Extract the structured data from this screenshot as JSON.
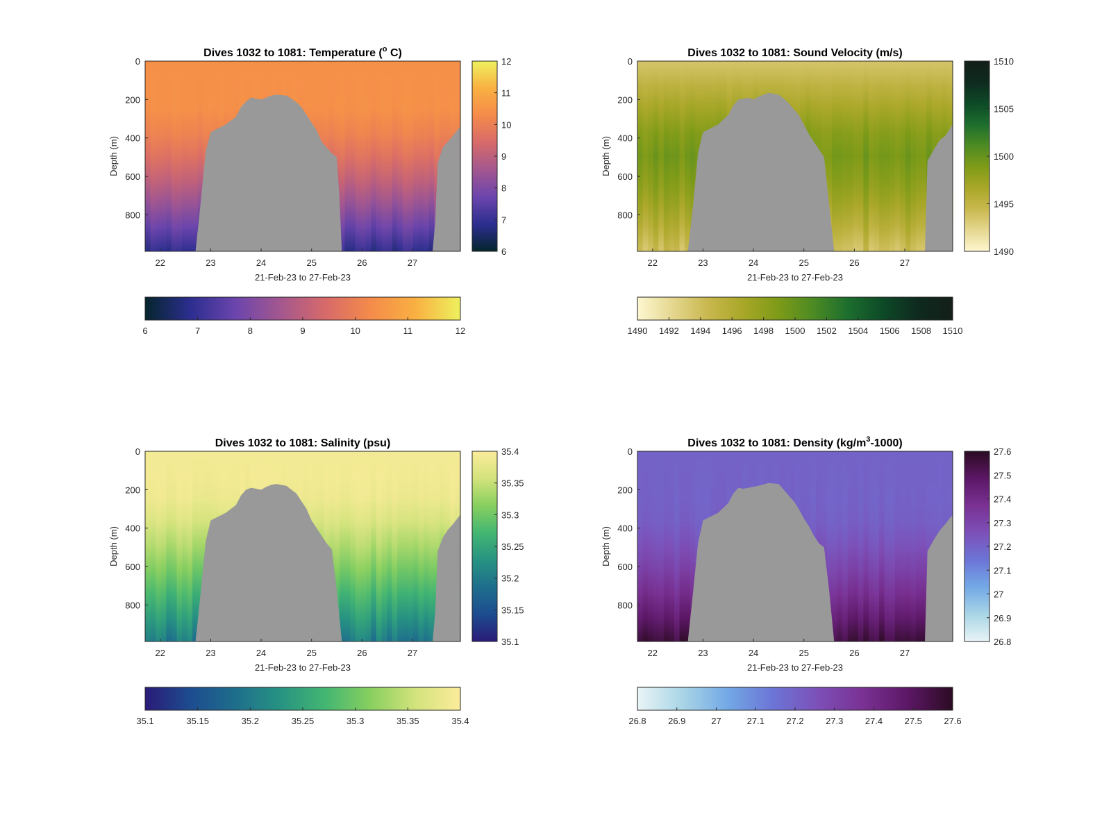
{
  "chart_data": [
    {
      "type": "heatmap",
      "title_main": "Dives 1032 to 1081: Temperature (",
      "title_sup": "o",
      "title_tail": " C)",
      "xlabel": "21-Feb-23 to 27-Feb-23",
      "ylabel": "Depth (m)",
      "xlim": [
        21.7,
        27.95
      ],
      "ylim": [
        0,
        990
      ],
      "xticks": [
        "22",
        "23",
        "24",
        "25",
        "26",
        "27"
      ],
      "xtick_values": [
        22,
        23,
        24,
        25,
        26,
        27
      ],
      "yticks": [
        "0",
        "200",
        "400",
        "600",
        "800"
      ],
      "ytick_values": [
        0,
        200,
        400,
        600,
        800
      ],
      "colormap": [
        "#05252c",
        "#2c2e8f",
        "#6b45ad",
        "#a3578f",
        "#d76a6a",
        "#f48b4a",
        "#f9b042",
        "#eef15d"
      ],
      "clim": [
        6,
        12
      ],
      "vcolorbar_ticks": [
        "6",
        "7",
        "8",
        "9",
        "10",
        "11",
        "12"
      ],
      "hcolorbar_ticks": [
        "6",
        "7",
        "8",
        "9",
        "10",
        "11",
        "12"
      ],
      "surface_value": 10.4,
      "deep_value": 6.9,
      "profile": "temperature",
      "seabed": [
        [
          21.7,
          990
        ],
        [
          22.7,
          990
        ],
        [
          22.8,
          740
        ],
        [
          22.9,
          470
        ],
        [
          23.0,
          370
        ],
        [
          23.3,
          330
        ],
        [
          23.5,
          290
        ],
        [
          23.6,
          240
        ],
        [
          23.7,
          210
        ],
        [
          23.8,
          190
        ],
        [
          23.9,
          195
        ],
        [
          24.0,
          200
        ],
        [
          24.1,
          190
        ],
        [
          24.2,
          180
        ],
        [
          24.3,
          175
        ],
        [
          24.5,
          180
        ],
        [
          24.6,
          195
        ],
        [
          24.7,
          215
        ],
        [
          24.8,
          240
        ],
        [
          24.9,
          280
        ],
        [
          25.0,
          320
        ],
        [
          25.1,
          360
        ],
        [
          25.2,
          420
        ],
        [
          25.3,
          450
        ],
        [
          25.4,
          480
        ],
        [
          25.5,
          500
        ],
        [
          25.55,
          700
        ],
        [
          25.6,
          990
        ],
        [
          27.4,
          990
        ],
        [
          27.45,
          840
        ],
        [
          27.5,
          530
        ],
        [
          27.6,
          450
        ],
        [
          27.7,
          420
        ],
        [
          27.8,
          390
        ],
        [
          27.95,
          340
        ]
      ]
    },
    {
      "type": "heatmap",
      "title_main": "Dives 1032 to 1081: Sound Velocity (m/s)",
      "title_sup": "",
      "title_tail": "",
      "xlabel": "21-Feb-23 to 27-Feb-23",
      "ylabel": "Depth (m)",
      "xlim": [
        21.7,
        27.95
      ],
      "ylim": [
        0,
        990
      ],
      "xticks": [
        "22",
        "23",
        "24",
        "25",
        "26",
        "27"
      ],
      "xtick_values": [
        22,
        23,
        24,
        25,
        26,
        27
      ],
      "yticks": [
        "0",
        "200",
        "400",
        "600",
        "800"
      ],
      "ytick_values": [
        0,
        200,
        400,
        600,
        800
      ],
      "colormap": [
        "#fdf7d0",
        "#e5d790",
        "#c9b84f",
        "#a9a728",
        "#7f9b18",
        "#4d8b23",
        "#1d6e2e",
        "#0d4a27",
        "#0e2a1f",
        "#141f18"
      ],
      "clim": [
        1490,
        1510
      ],
      "vcolorbar_ticks": [
        "1490",
        "1495",
        "1500",
        "1505",
        "1510"
      ],
      "hcolorbar_ticks": [
        "1490",
        "1492",
        "1494",
        "1496",
        "1498",
        "1500",
        "1502",
        "1504",
        "1506",
        "1508",
        "1510"
      ],
      "surface_value": 1493.5,
      "deep_value": 1494.0,
      "profile": "sound",
      "seabed": [
        [
          21.7,
          990
        ],
        [
          22.7,
          990
        ],
        [
          22.8,
          760
        ],
        [
          22.9,
          480
        ],
        [
          23.0,
          370
        ],
        [
          23.3,
          330
        ],
        [
          23.5,
          280
        ],
        [
          23.6,
          230
        ],
        [
          23.7,
          200
        ],
        [
          23.9,
          190
        ],
        [
          24.0,
          200
        ],
        [
          24.1,
          185
        ],
        [
          24.2,
          175
        ],
        [
          24.3,
          165
        ],
        [
          24.5,
          175
        ],
        [
          24.6,
          195
        ],
        [
          24.7,
          220
        ],
        [
          24.8,
          250
        ],
        [
          24.9,
          280
        ],
        [
          25.0,
          330
        ],
        [
          25.1,
          380
        ],
        [
          25.2,
          420
        ],
        [
          25.3,
          460
        ],
        [
          25.4,
          500
        ],
        [
          25.5,
          740
        ],
        [
          25.6,
          990
        ],
        [
          27.4,
          990
        ],
        [
          27.45,
          520
        ],
        [
          27.6,
          450
        ],
        [
          27.7,
          410
        ],
        [
          27.8,
          390
        ],
        [
          27.95,
          330
        ]
      ]
    },
    {
      "type": "heatmap",
      "title_main": "Dives 1032 to 1081: Salinity (psu)",
      "title_sup": "",
      "title_tail": "",
      "xlabel": "21-Feb-23 to 27-Feb-23",
      "ylabel": "Depth (m)",
      "xlim": [
        21.7,
        27.95
      ],
      "ylim": [
        0,
        990
      ],
      "xticks": [
        "22",
        "23",
        "24",
        "25",
        "26",
        "27"
      ],
      "xtick_values": [
        22,
        23,
        24,
        25,
        26,
        27
      ],
      "yticks": [
        "0",
        "200",
        "400",
        "600",
        "800"
      ],
      "ytick_values": [
        0,
        200,
        400,
        600,
        800
      ],
      "colormap": [
        "#2a1b78",
        "#1d4c8f",
        "#1e6e8c",
        "#279382",
        "#43b672",
        "#88cf5f",
        "#d3e37c",
        "#fcec9b"
      ],
      "clim": [
        35.1,
        35.4
      ],
      "vcolorbar_ticks": [
        "35.1",
        "35.15",
        "35.2",
        "35.25",
        "35.3",
        "35.35",
        "35.4"
      ],
      "hcolorbar_ticks": [
        "35.1",
        "35.15",
        "35.2",
        "35.25",
        "35.3",
        "35.35",
        "35.4"
      ],
      "surface_value": 35.39,
      "deep_value": 35.2,
      "profile": "salinity",
      "seabed": [
        [
          21.7,
          990
        ],
        [
          22.7,
          990
        ],
        [
          22.8,
          740
        ],
        [
          22.9,
          470
        ],
        [
          23.0,
          360
        ],
        [
          23.3,
          320
        ],
        [
          23.5,
          280
        ],
        [
          23.6,
          230
        ],
        [
          23.7,
          200
        ],
        [
          23.8,
          190
        ],
        [
          23.9,
          195
        ],
        [
          24.0,
          200
        ],
        [
          24.1,
          185
        ],
        [
          24.2,
          175
        ],
        [
          24.3,
          170
        ],
        [
          24.5,
          180
        ],
        [
          24.6,
          200
        ],
        [
          24.7,
          220
        ],
        [
          24.8,
          260
        ],
        [
          24.9,
          300
        ],
        [
          25.0,
          360
        ],
        [
          25.1,
          400
        ],
        [
          25.2,
          440
        ],
        [
          25.3,
          480
        ],
        [
          25.4,
          510
        ],
        [
          25.5,
          720
        ],
        [
          25.6,
          990
        ],
        [
          27.4,
          990
        ],
        [
          27.45,
          840
        ],
        [
          27.5,
          520
        ],
        [
          27.6,
          450
        ],
        [
          27.7,
          410
        ],
        [
          27.8,
          380
        ],
        [
          27.95,
          330
        ]
      ]
    },
    {
      "type": "heatmap",
      "title_main": "Dives 1032 to 1081: Density (kg/m",
      "title_sup": "3",
      "title_tail": "-1000)",
      "xlabel": "21-Feb-23 to 27-Feb-23",
      "ylabel": "Depth (m)",
      "xlim": [
        21.7,
        27.95
      ],
      "ylim": [
        0,
        990
      ],
      "xticks": [
        "22",
        "23",
        "24",
        "25",
        "26",
        "27"
      ],
      "xtick_values": [
        22,
        23,
        24,
        25,
        26,
        27
      ],
      "yticks": [
        "0",
        "200",
        "400",
        "600",
        "800"
      ],
      "ytick_values": [
        0,
        200,
        400,
        600,
        800
      ],
      "colormap": [
        "#e9f4f6",
        "#a9d5e6",
        "#73a9e6",
        "#6c75d6",
        "#7c50b8",
        "#7a3193",
        "#5c1766",
        "#2b0b22"
      ],
      "clim": [
        26.8,
        27.6
      ],
      "vcolorbar_ticks": [
        "26.8",
        "26.9",
        "27",
        "27.1",
        "27.2",
        "27.3",
        "27.4",
        "27.5",
        "27.6"
      ],
      "hcolorbar_ticks": [
        "26.8",
        "26.9",
        "27",
        "27.1",
        "27.2",
        "27.3",
        "27.4",
        "27.5",
        "27.6"
      ],
      "surface_value": 27.2,
      "deep_value": 27.5,
      "profile": "density",
      "seabed": [
        [
          21.7,
          990
        ],
        [
          22.7,
          990
        ],
        [
          22.8,
          740
        ],
        [
          22.9,
          480
        ],
        [
          23.0,
          360
        ],
        [
          23.3,
          320
        ],
        [
          23.5,
          270
        ],
        [
          23.6,
          220
        ],
        [
          23.7,
          190
        ],
        [
          23.8,
          195
        ],
        [
          23.9,
          190
        ],
        [
          24.1,
          180
        ],
        [
          24.3,
          165
        ],
        [
          24.5,
          170
        ],
        [
          24.6,
          200
        ],
        [
          24.7,
          230
        ],
        [
          24.8,
          260
        ],
        [
          24.9,
          300
        ],
        [
          25.0,
          350
        ],
        [
          25.1,
          390
        ],
        [
          25.2,
          440
        ],
        [
          25.3,
          480
        ],
        [
          25.4,
          500
        ],
        [
          25.5,
          720
        ],
        [
          25.6,
          990
        ],
        [
          27.4,
          990
        ],
        [
          27.45,
          520
        ],
        [
          27.6,
          450
        ],
        [
          27.7,
          410
        ],
        [
          27.8,
          380
        ],
        [
          27.95,
          330
        ]
      ]
    }
  ],
  "colors": {
    "seabed": "#999999",
    "axis": "#262626"
  }
}
